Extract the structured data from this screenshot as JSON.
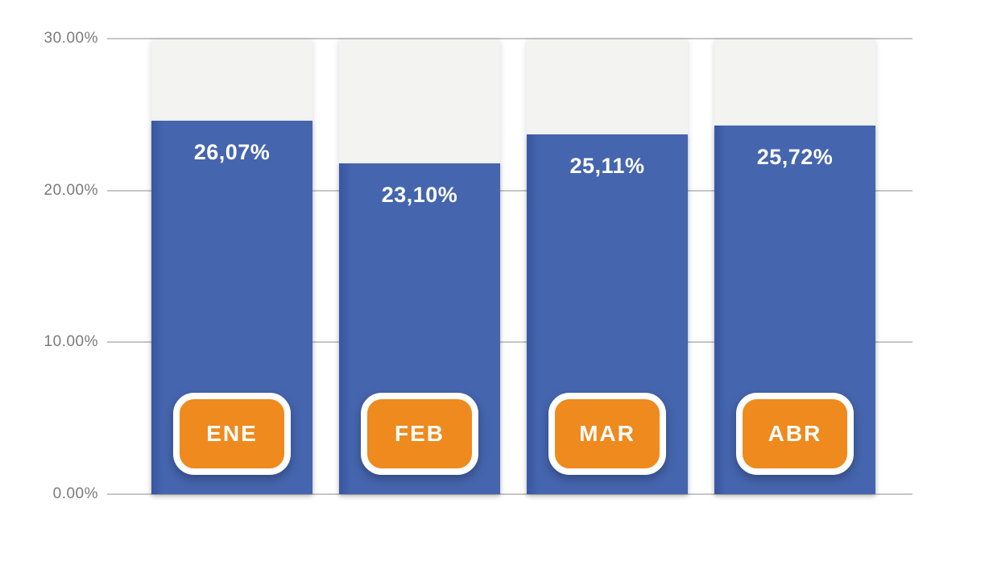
{
  "chart_data": {
    "type": "bar",
    "categories": [
      "ENE",
      "FEB",
      "MAR",
      "ABR"
    ],
    "values": [
      26.07,
      23.1,
      25.11,
      25.72
    ],
    "value_labels": [
      "26,07%",
      "23,10%",
      "25,11%",
      "25,72%"
    ],
    "title": "",
    "xlabel": "",
    "ylabel": "",
    "y_axis": {
      "min": 0,
      "max": 30,
      "ticks": [
        {
          "label": "30.00%",
          "value": 30
        },
        {
          "label": "20.00%",
          "value": 20
        },
        {
          "label": "10.00%",
          "value": 10
        },
        {
          "label": "0.00%",
          "value": 0
        }
      ]
    },
    "grid": true,
    "legend": false
  },
  "colors": {
    "background": "#FFFFFF",
    "bar": "#4565AE",
    "bar_edge": "#3B58A3",
    "badge": "#EE8A1E",
    "track": "#F3F3F1",
    "gridline": "#C6C6C6",
    "axis_text": "#7B7B7B",
    "value_text": "#FFFFFF",
    "badge_text": "#FFFFFF"
  }
}
